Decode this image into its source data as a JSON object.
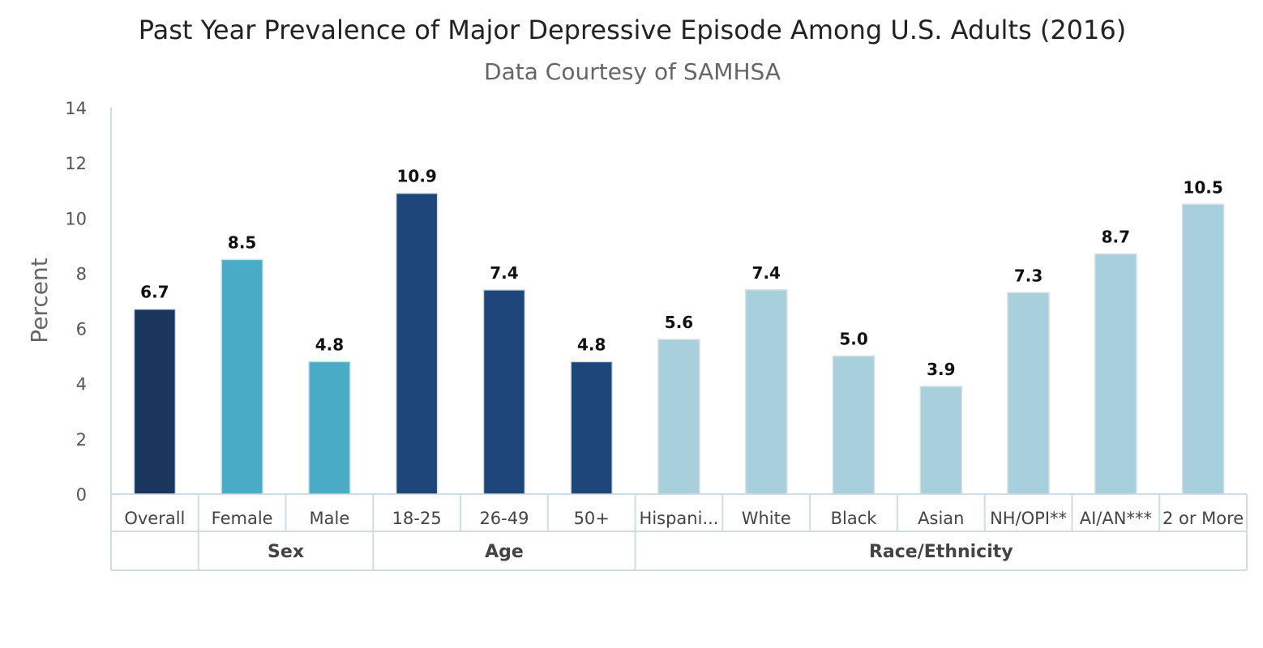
{
  "chart_data": {
    "type": "bar",
    "title": "Past Year Prevalence of Major Depressive Episode Among U.S. Adults (2016)",
    "subtitle": "Data Courtesy of SAMHSA",
    "ylabel": "Percent",
    "ylim": [
      0,
      14
    ],
    "yticks": [
      "0",
      "2",
      "4",
      "6",
      "8",
      "10",
      "12",
      "14"
    ],
    "categories": [
      "Overall",
      "Female",
      "Male",
      "18-25",
      "26-49",
      "50+",
      "Hispani...",
      "White",
      "Black",
      "Asian",
      "NH/OPI**",
      "AI/AN***",
      "2 or More"
    ],
    "values": [
      6.7,
      8.5,
      4.8,
      10.9,
      7.4,
      4.8,
      5.6,
      7.4,
      5.0,
      3.9,
      7.3,
      8.7,
      10.5
    ],
    "data_labels": [
      "6.7",
      "8.5",
      "4.8",
      "10.9",
      "7.4",
      "4.8",
      "5.6",
      "7.4",
      "5.0",
      "3.9",
      "7.3",
      "8.7",
      "10.5"
    ],
    "colors": [
      "#1b365d",
      "#4aabc6",
      "#4aabc6",
      "#1f467a",
      "#1f467a",
      "#1f467a",
      "#a8cfdc",
      "#a8cfdc",
      "#a8cfdc",
      "#a8cfdc",
      "#a8cfdc",
      "#a8cfdc",
      "#a8cfdc"
    ],
    "groups": [
      {
        "label": "",
        "start": 0,
        "count": 1
      },
      {
        "label": "Sex",
        "start": 1,
        "count": 2
      },
      {
        "label": "Age",
        "start": 3,
        "count": 3
      },
      {
        "label": "Race/Ethnicity",
        "start": 6,
        "count": 7
      }
    ],
    "grid": false
  },
  "colors": {
    "axis": "#cfdbe5",
    "text": "#444444"
  }
}
